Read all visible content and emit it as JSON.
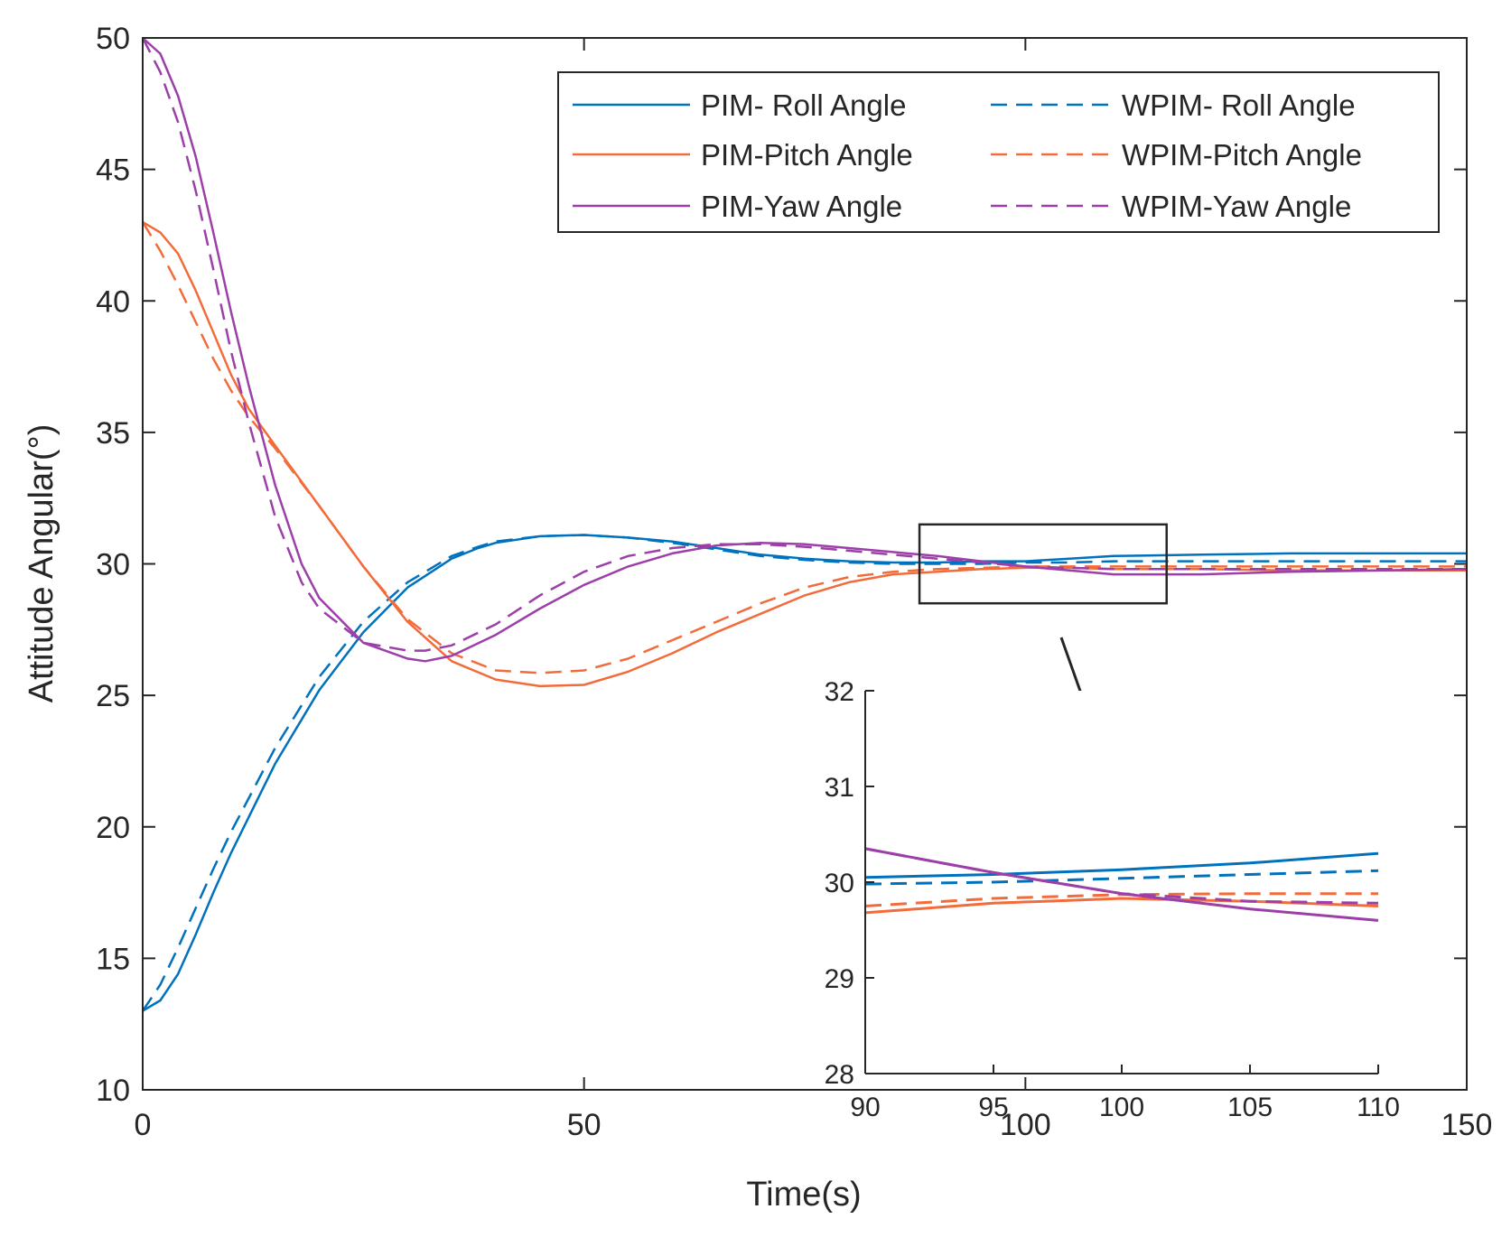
{
  "chart_data": {
    "type": "line",
    "title": "",
    "xlabel": "Time(s)",
    "ylabel": "Attitude Angular(°)",
    "xlim": [
      0,
      150
    ],
    "ylim": [
      10,
      50
    ],
    "xticks": [
      0,
      50,
      100,
      150
    ],
    "yticks": [
      10,
      15,
      20,
      25,
      30,
      35,
      40,
      45,
      50
    ],
    "legend_position": "top-right",
    "colors": {
      "roll": "#0072BD",
      "pitch": "#F26B3A",
      "yaw": "#9C3FA8"
    },
    "series": [
      {
        "name": "PIM- Roll Angle",
        "style": "solid",
        "color": "#0072BD",
        "x": [
          0,
          2,
          4,
          6,
          8,
          10,
          15,
          20,
          25,
          30,
          35,
          38,
          40,
          45,
          50,
          55,
          60,
          65,
          70,
          75,
          80,
          85,
          90,
          95,
          100,
          105,
          110,
          120,
          130,
          140,
          150
        ],
        "y": [
          13.0,
          13.4,
          14.4,
          15.9,
          17.5,
          19.0,
          22.4,
          25.2,
          27.4,
          29.1,
          30.2,
          30.6,
          30.8,
          31.05,
          31.1,
          31.0,
          30.85,
          30.6,
          30.35,
          30.2,
          30.1,
          30.05,
          30.05,
          30.1,
          30.1,
          30.2,
          30.3,
          30.35,
          30.4,
          30.4,
          30.4
        ]
      },
      {
        "name": "WPIM- Roll Angle",
        "style": "dashed",
        "color": "#0072BD",
        "x": [
          0,
          2,
          4,
          6,
          8,
          10,
          15,
          20,
          25,
          30,
          35,
          38,
          40,
          45,
          50,
          55,
          60,
          65,
          70,
          75,
          80,
          85,
          90,
          95,
          100,
          105,
          110,
          120,
          130,
          140,
          150
        ],
        "y": [
          13.0,
          14.0,
          15.4,
          16.9,
          18.4,
          19.8,
          23.0,
          25.7,
          27.8,
          29.3,
          30.3,
          30.65,
          30.85,
          31.05,
          31.1,
          31.0,
          30.8,
          30.55,
          30.3,
          30.15,
          30.05,
          30.0,
          30.0,
          30.0,
          30.05,
          30.05,
          30.1,
          30.1,
          30.1,
          30.1,
          30.1
        ]
      },
      {
        "name": "PIM-Pitch Angle",
        "style": "solid",
        "color": "#F26B3A",
        "x": [
          0,
          2,
          4,
          6,
          8,
          10,
          12,
          15,
          20,
          25,
          30,
          35,
          40,
          45,
          50,
          55,
          60,
          65,
          70,
          75,
          80,
          85,
          90,
          95,
          100,
          105,
          110,
          120,
          130,
          140,
          150
        ],
        "y": [
          43.0,
          42.6,
          41.8,
          40.4,
          38.8,
          37.2,
          35.9,
          34.5,
          32.2,
          29.9,
          27.8,
          26.3,
          25.6,
          25.35,
          25.4,
          25.9,
          26.6,
          27.4,
          28.1,
          28.8,
          29.3,
          29.6,
          29.7,
          29.8,
          29.85,
          29.85,
          29.8,
          29.8,
          29.75,
          29.75,
          29.75
        ]
      },
      {
        "name": "WPIM-Pitch Angle",
        "style": "dashed",
        "color": "#F26B3A",
        "x": [
          0,
          2,
          4,
          6,
          8,
          10,
          12,
          15,
          20,
          25,
          30,
          35,
          40,
          45,
          50,
          55,
          60,
          65,
          70,
          75,
          80,
          85,
          90,
          95,
          100,
          105,
          110,
          120,
          130,
          140,
          150
        ],
        "y": [
          43.0,
          41.9,
          40.6,
          39.2,
          37.8,
          36.6,
          35.6,
          34.4,
          32.2,
          29.9,
          27.9,
          26.6,
          25.95,
          25.85,
          25.95,
          26.4,
          27.1,
          27.8,
          28.5,
          29.1,
          29.5,
          29.7,
          29.8,
          29.85,
          29.9,
          29.9,
          29.9,
          29.9,
          29.9,
          29.9,
          29.9
        ]
      },
      {
        "name": "PIM-Yaw Angle",
        "style": "solid",
        "color": "#9C3FA8",
        "x": [
          0,
          2,
          4,
          6,
          8,
          10,
          12,
          15,
          18,
          20,
          25,
          30,
          32,
          35,
          40,
          45,
          50,
          55,
          60,
          65,
          70,
          75,
          80,
          85,
          90,
          95,
          100,
          105,
          110,
          120,
          130,
          140,
          150
        ],
        "y": [
          50.0,
          49.4,
          47.8,
          45.5,
          42.6,
          39.6,
          36.8,
          33.0,
          30.0,
          28.7,
          27.0,
          26.4,
          26.3,
          26.5,
          27.3,
          28.3,
          29.2,
          29.9,
          30.4,
          30.7,
          30.8,
          30.75,
          30.6,
          30.45,
          30.3,
          30.1,
          29.9,
          29.75,
          29.6,
          29.6,
          29.7,
          29.75,
          29.8
        ]
      },
      {
        "name": "WPIM-Yaw Angle",
        "style": "dashed",
        "color": "#9C3FA8",
        "x": [
          0,
          2,
          4,
          6,
          8,
          10,
          12,
          15,
          18,
          20,
          25,
          30,
          32,
          35,
          40,
          45,
          50,
          55,
          60,
          65,
          70,
          75,
          80,
          85,
          90,
          95,
          100,
          105,
          110,
          120,
          130,
          140,
          150
        ],
        "y": [
          50.0,
          48.7,
          46.8,
          44.2,
          41.2,
          38.1,
          35.4,
          31.8,
          29.3,
          28.3,
          27.0,
          26.7,
          26.7,
          26.9,
          27.7,
          28.8,
          29.7,
          30.3,
          30.6,
          30.75,
          30.75,
          30.65,
          30.5,
          30.35,
          30.2,
          30.05,
          29.9,
          29.85,
          29.8,
          29.8,
          29.8,
          29.8,
          29.8
        ]
      }
    ],
    "inset": {
      "xlim": [
        90,
        110
      ],
      "ylim": [
        28,
        32
      ],
      "xticks": [
        90,
        95,
        100,
        105,
        110
      ],
      "yticks": [
        28,
        29,
        30,
        31,
        32
      ],
      "zoom_region": {
        "x": [
          88,
          116
        ],
        "y": [
          28.5,
          31.5
        ]
      },
      "series": [
        {
          "ref": "PIM- Roll Angle",
          "style": "solid",
          "color": "#0072BD",
          "x": [
            90,
            95,
            100,
            105,
            110
          ],
          "y": [
            30.05,
            30.08,
            30.13,
            30.2,
            30.3
          ]
        },
        {
          "ref": "WPIM- Roll Angle",
          "style": "dashed",
          "color": "#0072BD",
          "x": [
            90,
            95,
            100,
            105,
            110
          ],
          "y": [
            29.98,
            30.0,
            30.04,
            30.08,
            30.12
          ]
        },
        {
          "ref": "PIM-Pitch Angle",
          "style": "solid",
          "color": "#F26B3A",
          "x": [
            90,
            95,
            100,
            105,
            110
          ],
          "y": [
            29.68,
            29.78,
            29.83,
            29.8,
            29.75
          ]
        },
        {
          "ref": "WPIM-Pitch Angle",
          "style": "dashed",
          "color": "#F26B3A",
          "x": [
            90,
            95,
            100,
            105,
            110
          ],
          "y": [
            29.75,
            29.83,
            29.87,
            29.88,
            29.88
          ]
        },
        {
          "ref": "PIM-Yaw Angle",
          "style": "solid",
          "color": "#9C3FA8",
          "x": [
            90,
            95,
            100,
            105,
            110
          ],
          "y": [
            30.35,
            30.1,
            29.88,
            29.72,
            29.6
          ]
        },
        {
          "ref": "WPIM-Yaw Angle",
          "style": "dashed",
          "color": "#9C3FA8",
          "x": [
            90,
            95,
            100,
            105,
            110
          ],
          "y": [
            30.35,
            30.1,
            29.88,
            29.8,
            29.78
          ]
        }
      ]
    }
  }
}
